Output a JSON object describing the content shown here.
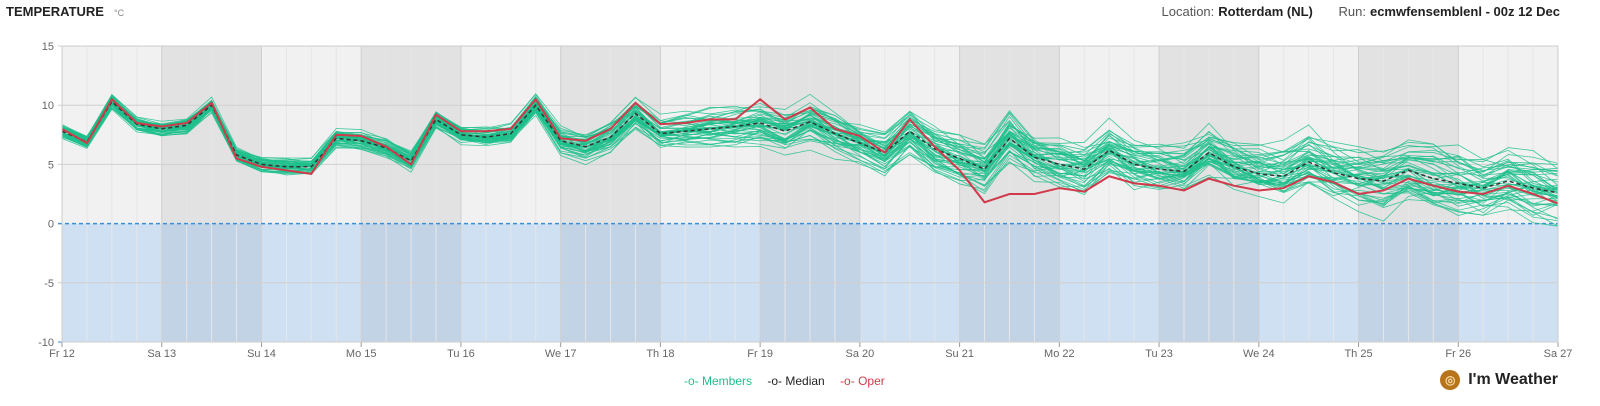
{
  "header": {
    "title": "TEMPERATURE",
    "unit": "°C",
    "location_label": "Location:",
    "location": "Rotterdam (NL)",
    "run_label": "Run:",
    "run": "ecmwfensemblenl - 00z 12 Dec"
  },
  "legend": {
    "members": "Members",
    "median": "Median",
    "oper": "Oper"
  },
  "brand": "I'm Weather",
  "colors": {
    "members": "#1dbf8c",
    "median": "#333333",
    "oper": "#d03a4a",
    "below_zero": "#cfe0f2",
    "zero_line": "#3a8fd8"
  },
  "chart_data": {
    "type": "line",
    "title": "TEMPERATURE",
    "ylabel": "°C",
    "ylim": [
      -10,
      15
    ],
    "yticks": [
      15,
      10,
      5,
      0,
      -5,
      -10
    ],
    "xticks": [
      "Fr 12",
      "Sa 13",
      "Su 14",
      "Mo 15",
      "Tu 16",
      "We 17",
      "Th 18",
      "Fr 19",
      "Sa 20",
      "Su 21",
      "Mo 22",
      "Tu 23",
      "We 24",
      "Th 25",
      "Fr 26",
      "Sa 27"
    ],
    "step_hours": 6,
    "series": [
      {
        "name": "Oper",
        "values": [
          8,
          6.8,
          10.5,
          8.5,
          8.2,
          8.5,
          10.2,
          5.5,
          4.8,
          4.5,
          4.2,
          7.5,
          7.4,
          6.5,
          5.0,
          9.2,
          7.8,
          7.8,
          8.0,
          10.5,
          7.2,
          7.0,
          8.0,
          10.2,
          8.4,
          8.5,
          8.8,
          8.8,
          10.5,
          8.8,
          9.8,
          8.0,
          7.4,
          6.0,
          8.8,
          6.5,
          4.5,
          1.8,
          2.5,
          2.5,
          3.0,
          2.7,
          4.0,
          3.4,
          3.2,
          2.8,
          3.8,
          3.2,
          2.8,
          3.0,
          4.0,
          3.5,
          2.5,
          2.8,
          3.8,
          3.2,
          2.7,
          2.5,
          3.2,
          2.5,
          1.7
        ]
      },
      {
        "name": "Median",
        "values": [
          7.8,
          6.9,
          10.3,
          8.4,
          8.0,
          8.3,
          10.0,
          5.8,
          5.0,
          4.8,
          4.8,
          7.2,
          7.0,
          6.4,
          5.3,
          8.8,
          7.5,
          7.3,
          7.6,
          10.0,
          7.0,
          6.5,
          7.3,
          9.3,
          7.6,
          7.8,
          8.0,
          8.2,
          8.5,
          7.8,
          8.6,
          7.6,
          6.8,
          6.0,
          7.8,
          6.3,
          5.5,
          4.6,
          7.2,
          5.6,
          5.0,
          4.6,
          6.2,
          5.0,
          4.6,
          4.4,
          6.0,
          4.8,
          4.2,
          4.0,
          5.2,
          4.3,
          3.8,
          3.6,
          4.5,
          3.8,
          3.4,
          3.0,
          3.6,
          3.0,
          2.6
        ]
      }
    ],
    "members_count": 50,
    "members_spread": [
      0.6,
      0.6,
      0.7,
      0.7,
      0.7,
      0.8,
      0.8,
      0.9,
      0.9,
      1.0,
      1.0,
      1.0,
      1.0,
      1.0,
      1.1,
      1.1,
      1.1,
      1.2,
      1.2,
      1.3,
      1.5,
      1.6,
      1.7,
      1.8,
      1.8,
      1.9,
      2.0,
      2.1,
      2.2,
      2.3,
      2.4,
      2.4,
      2.5,
      2.6,
      2.7,
      2.7,
      2.8,
      2.8,
      2.9,
      2.9,
      3.0,
      3.0,
      3.0,
      3.1,
      3.1,
      3.1,
      3.2,
      3.2,
      3.2,
      3.3,
      3.3,
      3.3,
      3.4,
      3.4,
      3.4,
      3.5,
      3.5,
      3.5,
      3.6,
      3.6,
      3.6
    ]
  }
}
